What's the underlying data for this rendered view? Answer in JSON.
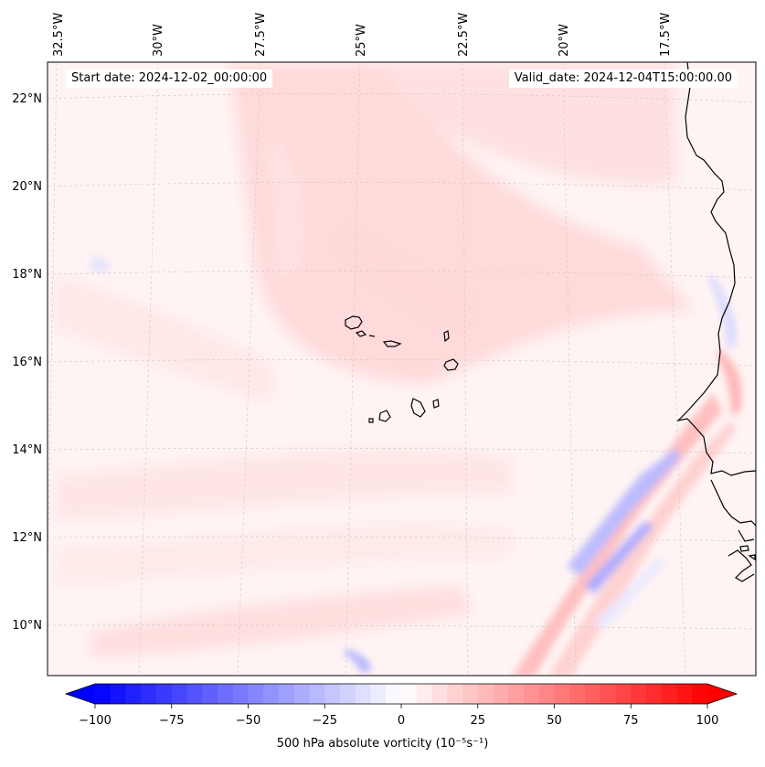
{
  "header": {
    "start_date": "Start date: 2024-12-02_00:00:00",
    "valid_date": "Valid_date: 2024-12-04T15:00:00.00"
  },
  "longitude_labels": [
    {
      "value": -32.5,
      "text": "32.5°W"
    },
    {
      "value": -30.0,
      "text": "30°W"
    },
    {
      "value": -27.5,
      "text": "27.5°W"
    },
    {
      "value": -25.0,
      "text": "25°W"
    },
    {
      "value": -22.5,
      "text": "22.5°W"
    },
    {
      "value": -20.0,
      "text": "20°W"
    },
    {
      "value": -17.5,
      "text": "17.5°W"
    }
  ],
  "latitude_labels": [
    {
      "value": 22,
      "text": "22°N"
    },
    {
      "value": 20,
      "text": "20°N"
    },
    {
      "value": 18,
      "text": "18°N"
    },
    {
      "value": 16,
      "text": "16°N"
    },
    {
      "value": 14,
      "text": "14°N"
    },
    {
      "value": 12,
      "text": "12°N"
    },
    {
      "value": 10,
      "text": "10°N"
    }
  ],
  "colorbar": {
    "min": -100,
    "max": 100,
    "ticks": [
      "−100",
      "−75",
      "−50",
      "−25",
      "0",
      "25",
      "50",
      "75",
      "100"
    ],
    "label": "500 hPa absolute vorticity (10⁻⁵s⁻¹)",
    "extend": "both",
    "colors": {
      "low": "#0000ff",
      "mid": "#ffffff",
      "high": "#ff0000"
    }
  },
  "map": {
    "region": "Cape Verde Islands and West African coast",
    "background_color": "#fff4f4",
    "coastline_color": "#000000",
    "gridline_color": "#c8c8c8"
  }
}
